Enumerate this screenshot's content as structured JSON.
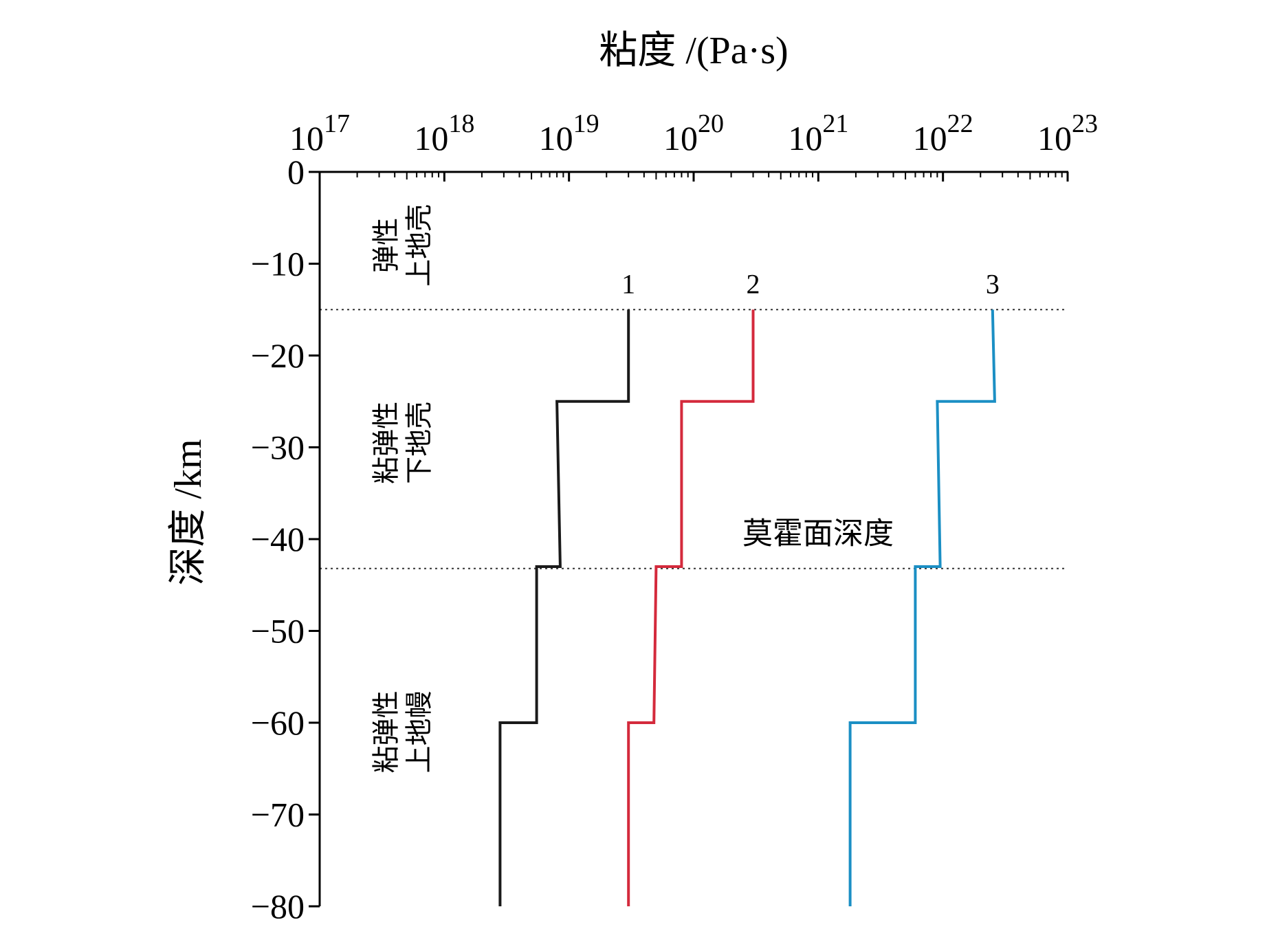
{
  "chart_data": {
    "type": "line",
    "xlabel": "粘度 /(Pa·s)",
    "ylabel": "深度 /km",
    "x_scale": "log",
    "xlim": [
      1e+17,
      1e+23
    ],
    "ylim": [
      -80,
      0
    ],
    "x_ticks": [
      {
        "base": "10",
        "exp": "17",
        "value": 1e+17
      },
      {
        "base": "10",
        "exp": "18",
        "value": 1e+18
      },
      {
        "base": "10",
        "exp": "19",
        "value": 1e+19
      },
      {
        "base": "10",
        "exp": "20",
        "value": 1e+20
      },
      {
        "base": "10",
        "exp": "21",
        "value": 1e+21
      },
      {
        "base": "10",
        "exp": "22",
        "value": 1e+22
      },
      {
        "base": "10",
        "exp": "23",
        "value": 1e+23
      }
    ],
    "y_ticks": [
      {
        "label": "0",
        "value": 0
      },
      {
        "label": "−10",
        "value": -10
      },
      {
        "label": "−20",
        "value": -20
      },
      {
        "label": "−30",
        "value": -30
      },
      {
        "label": "−40",
        "value": -40
      },
      {
        "label": "−50",
        "value": -50
      },
      {
        "label": "−60",
        "value": -60
      },
      {
        "label": "−70",
        "value": -70
      },
      {
        "label": "−80",
        "value": -80
      }
    ],
    "grid": false,
    "series": [
      {
        "name": "1",
        "color": "#1a1a1a",
        "points": [
          [
            3e+19,
            -15
          ],
          [
            3e+19,
            -25
          ],
          [
            8e+18,
            -25
          ],
          [
            8.5e+18,
            -43
          ],
          [
            5.5e+18,
            -43
          ],
          [
            5.5e+18,
            -60
          ],
          [
            2.8e+18,
            -60
          ],
          [
            2.8e+18,
            -80
          ]
        ]
      },
      {
        "name": "2",
        "color": "#d42a3c",
        "points": [
          [
            3e+20,
            -15
          ],
          [
            3e+20,
            -25
          ],
          [
            8e+19,
            -25
          ],
          [
            8e+19,
            -43
          ],
          [
            5e+19,
            -43
          ],
          [
            4.8e+19,
            -60
          ],
          [
            3e+19,
            -60
          ],
          [
            3e+19,
            -80
          ]
        ]
      },
      {
        "name": "3",
        "color": "#1b8fc4",
        "points": [
          [
            2.5e+22,
            -15
          ],
          [
            2.6e+22,
            -25
          ],
          [
            9e+21,
            -25
          ],
          [
            9.5e+21,
            -43
          ],
          [
            6e+21,
            -43
          ],
          [
            6e+21,
            -60
          ],
          [
            1.8e+21,
            -60
          ],
          [
            1.8e+21,
            -80
          ]
        ]
      }
    ],
    "reference_lines": [
      {
        "y": -15,
        "style": "dotted"
      },
      {
        "y": -43.2,
        "style": "dotted"
      }
    ],
    "annotations": {
      "moho": "莫霍面深度",
      "zones": [
        {
          "lines": [
            "弹性",
            "上地壳"
          ],
          "y_center": -8
        },
        {
          "lines": [
            "粘弹性",
            "下地壳"
          ],
          "y_center": -29.5
        },
        {
          "lines": [
            "粘弹性",
            "上地幔"
          ],
          "y_center": -61
        }
      ]
    }
  }
}
